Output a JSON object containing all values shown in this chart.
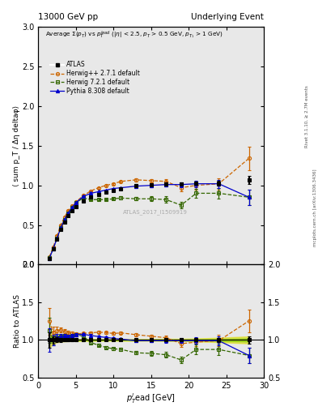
{
  "title_left": "13000 GeV pp",
  "title_right": "Underlying Event",
  "right_label": "Rivet 3.1.10, ≥ 2.7M events",
  "right_label2": "mcplots.cern.ch [arXiv:1306.3436]",
  "watermark": "ATLAS_2017_I1509919",
  "xlabel": "p_{T}^{l}ead [GeV]",
  "ylabel_main": "⟨ sum p_T / Δη deltaφ⟩",
  "ylabel_ratio": "Ratio to ATLAS",
  "xlim": [
    0,
    30
  ],
  "ylim_main": [
    0,
    3
  ],
  "ylim_ratio": [
    0.5,
    2
  ],
  "yticks_main": [
    0,
    0.5,
    1.0,
    1.5,
    2.0,
    2.5,
    3.0
  ],
  "yticks_ratio": [
    0.5,
    1.0,
    1.5,
    2.0
  ],
  "atlas_x": [
    1.5,
    2.0,
    2.5,
    3.0,
    3.5,
    4.0,
    4.5,
    5.0,
    6.0,
    7.0,
    8.0,
    9.0,
    10.0,
    11.0,
    13.0,
    15.0,
    17.0,
    19.0,
    21.0,
    24.0,
    28.0
  ],
  "atlas_y": [
    0.08,
    0.2,
    0.32,
    0.44,
    0.54,
    0.62,
    0.68,
    0.73,
    0.8,
    0.85,
    0.88,
    0.91,
    0.94,
    0.96,
    1.0,
    1.01,
    1.02,
    1.02,
    1.03,
    1.03,
    1.07
  ],
  "atlas_yerr": [
    0.008,
    0.01,
    0.01,
    0.01,
    0.01,
    0.01,
    0.01,
    0.01,
    0.01,
    0.01,
    0.01,
    0.01,
    0.01,
    0.01,
    0.012,
    0.012,
    0.015,
    0.015,
    0.02,
    0.03,
    0.05
  ],
  "hppdef_x": [
    1.5,
    2.0,
    2.5,
    3.0,
    3.5,
    4.0,
    4.5,
    5.0,
    6.0,
    7.0,
    8.0,
    9.0,
    10.0,
    11.0,
    13.0,
    15.0,
    17.0,
    19.0,
    21.0,
    24.0,
    28.0
  ],
  "hppdef_y": [
    0.1,
    0.22,
    0.36,
    0.5,
    0.6,
    0.68,
    0.74,
    0.79,
    0.87,
    0.93,
    0.97,
    1.0,
    1.02,
    1.05,
    1.07,
    1.06,
    1.05,
    0.97,
    1.0,
    1.02,
    1.34
  ],
  "hppdef_yerr": [
    0.01,
    0.01,
    0.01,
    0.01,
    0.01,
    0.01,
    0.01,
    0.01,
    0.01,
    0.01,
    0.01,
    0.01,
    0.01,
    0.01,
    0.02,
    0.02,
    0.03,
    0.04,
    0.05,
    0.07,
    0.15
  ],
  "h721def_x": [
    1.5,
    2.0,
    2.5,
    3.0,
    3.5,
    4.0,
    4.5,
    5.0,
    6.0,
    7.0,
    8.0,
    9.0,
    10.0,
    11.0,
    13.0,
    15.0,
    17.0,
    19.0,
    21.0,
    24.0,
    28.0
  ],
  "h721def_y": [
    0.09,
    0.2,
    0.33,
    0.46,
    0.57,
    0.65,
    0.72,
    0.78,
    0.84,
    0.82,
    0.82,
    0.82,
    0.83,
    0.84,
    0.83,
    0.83,
    0.82,
    0.75,
    0.9,
    0.9,
    0.85
  ],
  "h721def_yerr": [
    0.01,
    0.01,
    0.01,
    0.01,
    0.01,
    0.01,
    0.01,
    0.01,
    0.01,
    0.01,
    0.01,
    0.01,
    0.01,
    0.02,
    0.02,
    0.03,
    0.04,
    0.04,
    0.06,
    0.07,
    0.1
  ],
  "pythia_x": [
    1.5,
    2.0,
    2.5,
    3.0,
    3.5,
    4.0,
    4.5,
    5.0,
    6.0,
    7.0,
    8.0,
    9.0,
    10.0,
    11.0,
    13.0,
    15.0,
    17.0,
    19.0,
    21.0,
    24.0,
    28.0
  ],
  "pythia_y": [
    0.08,
    0.2,
    0.33,
    0.46,
    0.57,
    0.65,
    0.72,
    0.78,
    0.86,
    0.9,
    0.92,
    0.94,
    0.96,
    0.97,
    0.99,
    1.0,
    1.01,
    1.01,
    1.02,
    1.02,
    0.85
  ],
  "pythia_yerr": [
    0.01,
    0.01,
    0.01,
    0.01,
    0.01,
    0.01,
    0.01,
    0.01,
    0.01,
    0.01,
    0.01,
    0.01,
    0.01,
    0.01,
    0.01,
    0.02,
    0.02,
    0.03,
    0.04,
    0.05,
    0.1
  ],
  "atlas_color": "#000000",
  "hppdef_color": "#cc6600",
  "h721def_color": "#336600",
  "pythia_color": "#0000cc",
  "bg_color": "#e8e8e8"
}
